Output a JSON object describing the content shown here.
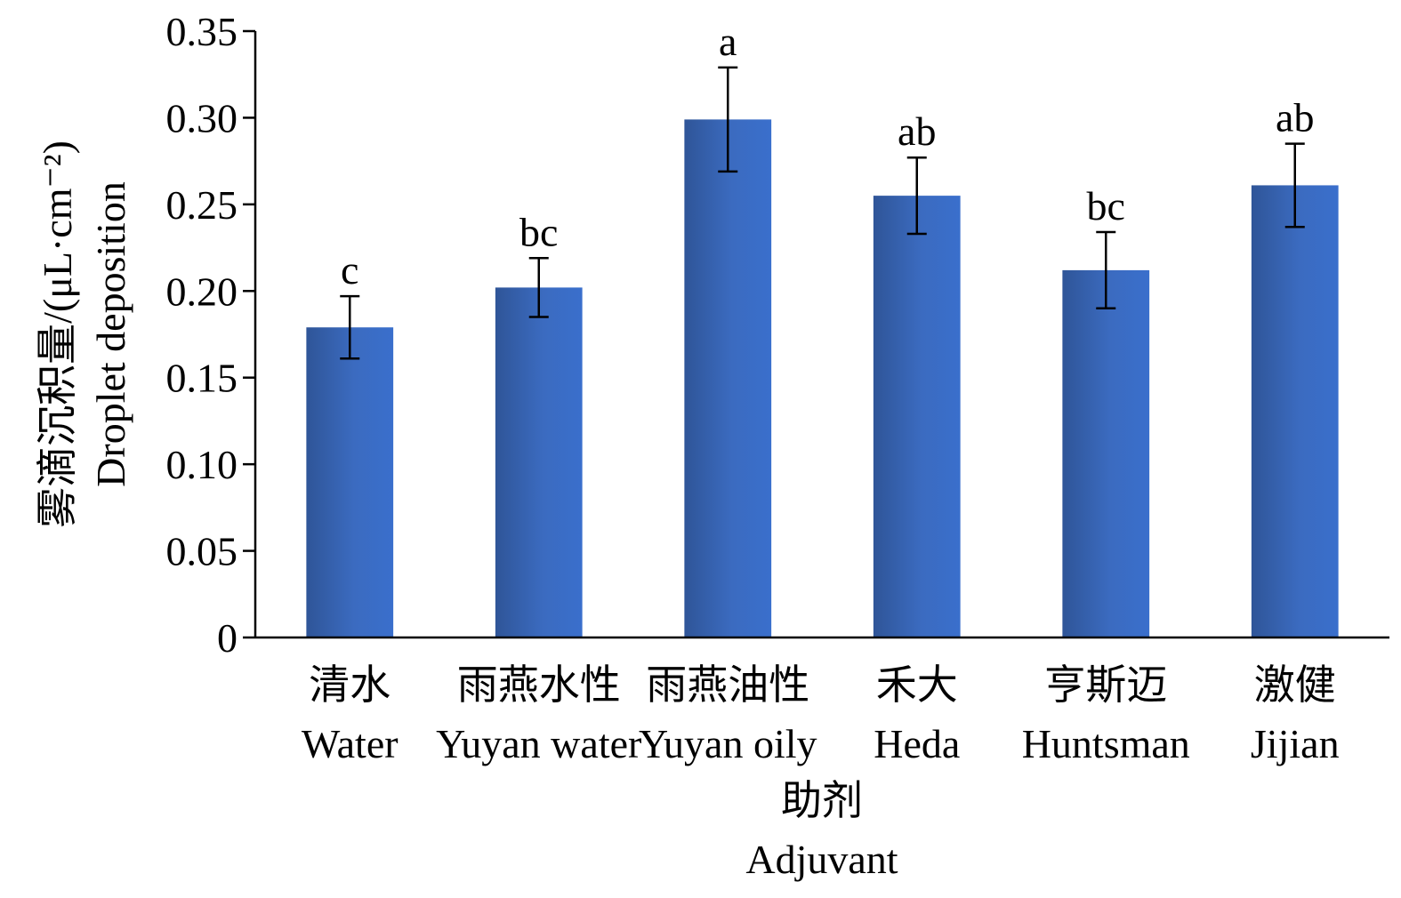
{
  "chart_data": {
    "type": "bar",
    "categories": [
      {
        "zh": "清水",
        "en": "Water"
      },
      {
        "zh": "雨燕水性",
        "en": "Yuyan water"
      },
      {
        "zh": "雨燕油性",
        "en": "Yuyan oily"
      },
      {
        "zh": "禾大",
        "en": "Heda"
      },
      {
        "zh": "亨斯迈",
        "en": "Huntsman"
      },
      {
        "zh": "激健",
        "en": "Jijian"
      }
    ],
    "values": [
      0.179,
      0.202,
      0.299,
      0.255,
      0.212,
      0.261
    ],
    "errors": [
      0.018,
      0.017,
      0.03,
      0.022,
      0.022,
      0.024
    ],
    "significance": [
      "c",
      "bc",
      "a",
      "ab",
      "bc",
      "ab"
    ],
    "xlabel_zh": "助剂",
    "xlabel_en": "Adjuvant",
    "ylabel_zh": "雾滴沉积量/(μL·cm⁻²)",
    "ylabel_en": "Droplet deposition",
    "ylim": [
      0,
      0.35
    ],
    "yticks": [
      "0",
      "0.05",
      "0.10",
      "0.15",
      "0.20",
      "0.25",
      "0.30",
      "0.35"
    ],
    "grid": false,
    "legend": "none",
    "bar_color": "#3a68b8"
  }
}
